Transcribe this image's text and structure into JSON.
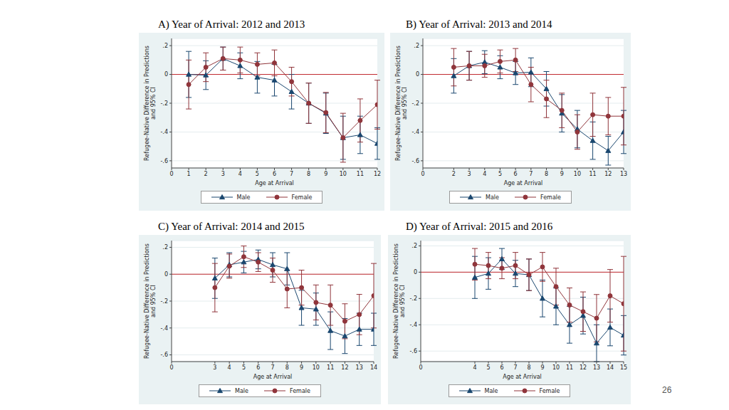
{
  "page_number": "26",
  "chart_data": [
    {
      "type": "line",
      "title": "A) Year of Arrival: 2012 and 2013",
      "x_label": "Age at Arrival",
      "y_label": [
        "Refugee-Native Difference in Predictions",
        "and 95% CI"
      ],
      "x": [
        1,
        2,
        3,
        4,
        5,
        6,
        7,
        8,
        9,
        10,
        11,
        12
      ],
      "series": [
        {
          "name": "Male",
          "color": "#1a476f",
          "marker": "triangle",
          "values": [
            0.0,
            -0.005,
            0.11,
            0.06,
            -0.02,
            -0.04,
            -0.12,
            -0.2,
            -0.27,
            -0.44,
            -0.42,
            -0.48
          ],
          "errors": [
            0.16,
            0.1,
            0.08,
            0.09,
            0.11,
            0.11,
            0.12,
            0.14,
            0.14,
            0.15,
            0.13,
            0.11
          ]
        },
        {
          "name": "Female",
          "color": "#90353b",
          "marker": "circle",
          "values": [
            -0.07,
            0.05,
            0.11,
            0.1,
            0.07,
            0.08,
            -0.05,
            -0.2,
            -0.265,
            -0.44,
            -0.32,
            -0.21
          ],
          "errors": [
            0.17,
            0.1,
            0.08,
            0.09,
            0.08,
            0.09,
            0.1,
            0.14,
            0.14,
            0.17,
            0.15,
            0.17
          ]
        }
      ],
      "xlim": [
        0,
        12
      ],
      "xticks": [
        0,
        1,
        2,
        3,
        4,
        5,
        6,
        7,
        8,
        9,
        10,
        11,
        12
      ],
      "ylim": [
        -0.65,
        0.25
      ],
      "yticks": [
        {
          "value": -0.6,
          "label": "-.6"
        },
        {
          "value": -0.4,
          "label": "-.4"
        },
        {
          "value": -0.2,
          "label": "-.2"
        },
        0,
        {
          "value": 0.2,
          "label": ".2"
        }
      ],
      "reference_y": 0,
      "grid": true,
      "legend": "bottom"
    },
    {
      "type": "line",
      "title": "B) Year of Arrival: 2013 and 2014",
      "x_label": "Age at Arrival",
      "y_label": [
        "Refugee-Native Difference in Predictions",
        "and 95% CI"
      ],
      "x": [
        2,
        3,
        4,
        5,
        6,
        7,
        8,
        9,
        10,
        11,
        12,
        13
      ],
      "series": [
        {
          "name": "Male",
          "color": "#1a476f",
          "marker": "triangle",
          "values": [
            -0.01,
            0.06,
            0.085,
            0.05,
            0.01,
            0.015,
            -0.1,
            -0.27,
            -0.38,
            -0.46,
            -0.53,
            -0.4
          ],
          "errors": [
            0.12,
            0.1,
            0.08,
            0.08,
            0.08,
            0.1,
            0.12,
            0.13,
            0.13,
            0.13,
            0.1,
            0.15
          ]
        },
        {
          "name": "Female",
          "color": "#90353b",
          "marker": "circle",
          "values": [
            0.05,
            0.06,
            0.06,
            0.09,
            0.1,
            -0.07,
            -0.17,
            -0.25,
            -0.4,
            -0.28,
            -0.29,
            -0.29
          ],
          "errors": [
            0.13,
            0.1,
            0.08,
            0.08,
            0.08,
            0.12,
            0.13,
            0.12,
            0.12,
            0.15,
            0.13,
            0.2
          ]
        }
      ],
      "xlim": [
        0,
        13
      ],
      "xticks": [
        0,
        2,
        3,
        4,
        5,
        6,
        7,
        8,
        9,
        10,
        11,
        12,
        13
      ],
      "ylim": [
        -0.65,
        0.25
      ],
      "yticks": [
        {
          "value": -0.6,
          "label": "-.6"
        },
        {
          "value": -0.4,
          "label": "-.4"
        },
        {
          "value": -0.2,
          "label": "-.2"
        },
        0,
        {
          "value": 0.2,
          "label": ".2"
        }
      ],
      "reference_y": 0,
      "grid": true,
      "legend": "bottom"
    },
    {
      "type": "line",
      "title": "C) Year of Arrival: 2014 and 2015",
      "x_label": "Age at Arrival",
      "y_label": [
        "Refugee-Native Difference in Predictions",
        "and 95% CI"
      ],
      "x": [
        3,
        4,
        5,
        6,
        7,
        8,
        9,
        10,
        11,
        12,
        13,
        14
      ],
      "series": [
        {
          "name": "Male",
          "color": "#1a476f",
          "marker": "triangle",
          "values": [
            -0.03,
            0.07,
            0.09,
            0.11,
            0.07,
            0.04,
            -0.25,
            -0.26,
            -0.42,
            -0.46,
            -0.41,
            -0.41
          ],
          "errors": [
            0.15,
            0.09,
            0.08,
            0.07,
            0.09,
            0.12,
            0.13,
            0.12,
            0.14,
            0.13,
            0.12,
            0.12
          ]
        },
        {
          "name": "Female",
          "color": "#90353b",
          "marker": "circle",
          "values": [
            -0.1,
            0.06,
            0.13,
            0.09,
            0.03,
            -0.11,
            -0.1,
            -0.21,
            -0.23,
            -0.35,
            -0.3,
            -0.16
          ],
          "errors": [
            0.18,
            0.09,
            0.08,
            0.07,
            0.09,
            0.14,
            0.13,
            0.13,
            0.15,
            0.13,
            0.15,
            0.24
          ]
        }
      ],
      "xlim": [
        0,
        14
      ],
      "xticks": [
        0,
        3,
        4,
        5,
        6,
        7,
        8,
        9,
        10,
        11,
        12,
        13,
        14
      ],
      "ylim": [
        -0.65,
        0.25
      ],
      "yticks": [
        {
          "value": -0.6,
          "label": "-.6"
        },
        {
          "value": -0.4,
          "label": "-.4"
        },
        {
          "value": -0.2,
          "label": "-.2"
        },
        0,
        {
          "value": 0.2,
          "label": ".2"
        }
      ],
      "reference_y": 0,
      "grid": true,
      "legend": "bottom"
    },
    {
      "type": "line",
      "title": "D) Year of Arrival: 2015 and 2016",
      "x_label": "Age at Arrival",
      "y_label": [
        "Refugee-Native Difference in Predictions",
        "and 95% CI"
      ],
      "x": [
        4,
        5,
        6,
        7,
        8,
        9,
        10,
        11,
        12,
        13,
        14,
        15
      ],
      "series": [
        {
          "name": "Male",
          "color": "#1a476f",
          "marker": "triangle",
          "values": [
            -0.04,
            -0.01,
            0.1,
            -0.01,
            -0.02,
            -0.2,
            -0.26,
            -0.4,
            -0.33,
            -0.54,
            -0.42,
            -0.48
          ],
          "errors": [
            0.16,
            0.12,
            0.08,
            0.1,
            0.12,
            0.14,
            0.14,
            0.14,
            0.14,
            0.14,
            0.14,
            0.15
          ]
        },
        {
          "name": "Female",
          "color": "#90353b",
          "marker": "circle",
          "values": [
            0.06,
            0.05,
            0.03,
            0.05,
            -0.02,
            0.04,
            -0.11,
            -0.25,
            -0.3,
            -0.35,
            -0.18,
            -0.24
          ],
          "errors": [
            0.12,
            0.1,
            0.08,
            0.1,
            0.12,
            0.11,
            0.14,
            0.13,
            0.15,
            0.18,
            0.2,
            0.36
          ]
        }
      ],
      "xlim": [
        0,
        15
      ],
      "xticks": [
        0,
        4,
        5,
        6,
        7,
        8,
        9,
        10,
        11,
        12,
        13,
        14,
        15
      ],
      "ylim": [
        -0.68,
        0.24
      ],
      "yticks": [
        {
          "value": -0.6,
          "label": "-.6"
        },
        {
          "value": -0.4,
          "label": "-.4"
        },
        {
          "value": -0.2,
          "label": "-.2"
        },
        0,
        {
          "value": 0.2,
          "label": ".2"
        }
      ],
      "reference_y": 0,
      "grid": true,
      "legend": "bottom"
    }
  ]
}
